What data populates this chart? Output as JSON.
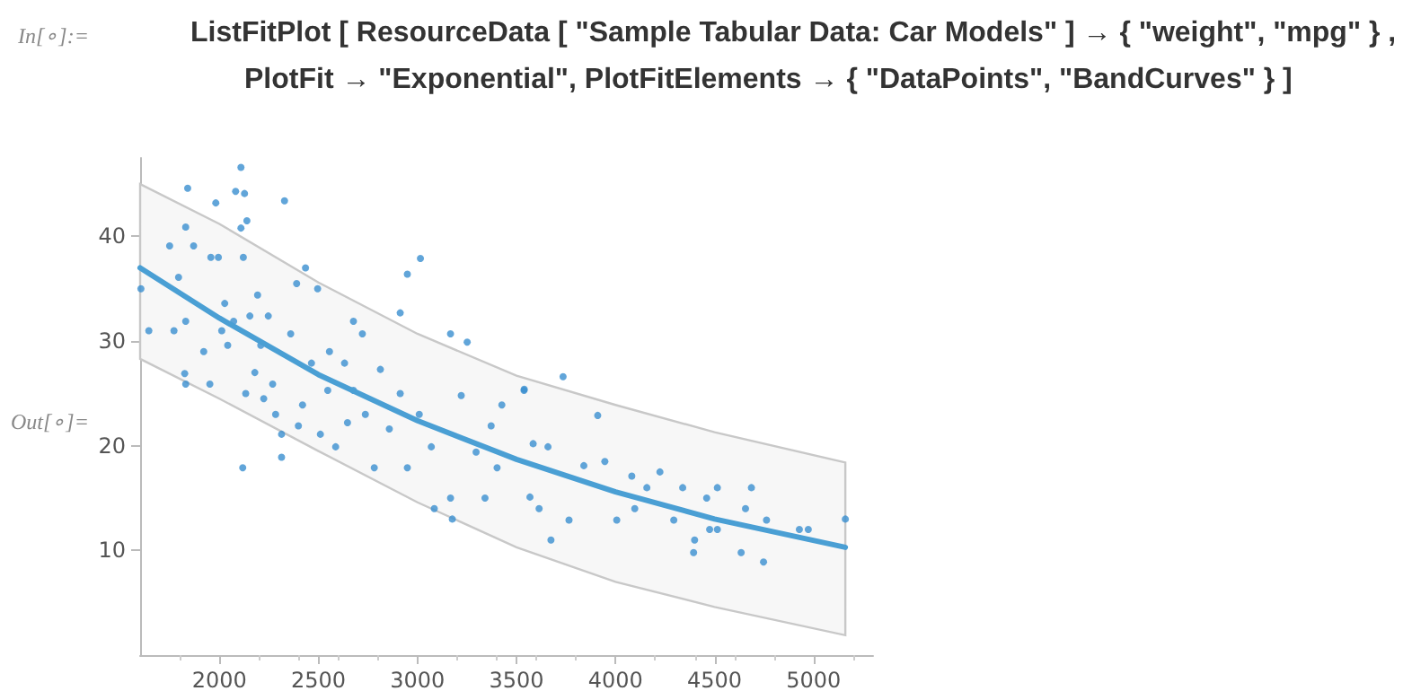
{
  "chart_data": {
    "type": "scatter",
    "title": "ListFitPlot [ ResourceData [ \"Sample Tabular Data: Car Models\" ] → { \"weight\", \"mpg\" } ,",
    "subtitle": "PlotFit → \"Exponential\", PlotFitElements → { \"DataPoints\", \"BandCurves\" } ]",
    "annotations": [
      "In[∘]:=",
      "Out[∘]="
    ],
    "xlim": [
      1600,
      5300
    ],
    "xticks": [
      2000,
      2500,
      3000,
      3500,
      4000,
      4500,
      5000
    ],
    "ylim": [
      0,
      47.5
    ],
    "yticks": [
      10,
      20,
      30,
      40
    ],
    "grid": false,
    "marker": "circle",
    "series": [
      {
        "type": "scatter",
        "color": "#3a8fd0",
        "x": [
          1604,
          1644,
          1749,
          1840,
          1830,
          1794,
          1830,
          1825,
          1830,
          1771,
          1921,
          1870,
          1982,
          1957,
          1995,
          1952,
          2012,
          2027,
          2072,
          2042,
          2082,
          2109,
          2127,
          2139,
          2109,
          2121,
          2118,
          2154,
          2133,
          2179,
          2209,
          2193,
          2247,
          2224,
          2269,
          2284,
          2314,
          2329,
          2314,
          2360,
          2390,
          2435,
          2420,
          2399,
          2465,
          2496,
          2510,
          2556,
          2547,
          2587,
          2632,
          2647,
          2677,
          2677,
          2722,
          2737,
          2782,
          2813,
          2858,
          2913,
          2913,
          2949,
          2949,
          3015,
          3009,
          3070,
          3085,
          3167,
          3167,
          3176,
          3221,
          3251,
          3296,
          3341,
          3372,
          3402,
          3426,
          3538,
          3568,
          3614,
          3674,
          3659,
          3735,
          3539,
          3584,
          3765,
          3840,
          3910,
          3946,
          4006,
          4082,
          4097,
          4158,
          4224,
          4294,
          4339,
          4394,
          4399,
          4460,
          4475,
          4514,
          4514,
          4634,
          4656,
          4686,
          4747,
          4762,
          4928,
          4973,
          5160
        ],
        "values": [
          35.0,
          31.0,
          39.1,
          44.6,
          40.9,
          36.1,
          31.9,
          26.9,
          25.9,
          31.0,
          29.0,
          39.1,
          43.2,
          38.0,
          38.0,
          25.9,
          31.0,
          33.6,
          31.9,
          29.6,
          44.3,
          46.6,
          44.1,
          41.5,
          40.8,
          38.0,
          17.9,
          32.4,
          25.0,
          27.0,
          29.6,
          34.4,
          32.4,
          24.5,
          25.9,
          23.0,
          21.1,
          43.4,
          18.9,
          30.7,
          35.5,
          37.0,
          23.9,
          21.9,
          27.9,
          35.0,
          21.1,
          29.0,
          25.3,
          19.9,
          27.9,
          22.2,
          31.9,
          25.3,
          30.7,
          23.0,
          17.9,
          27.3,
          21.6,
          32.7,
          25.0,
          36.4,
          17.9,
          37.9,
          23.0,
          19.9,
          14.0,
          30.7,
          15.0,
          13.0,
          24.8,
          29.9,
          19.4,
          15.0,
          21.9,
          17.9,
          23.9,
          25.3,
          15.1,
          14.0,
          11.0,
          19.9,
          26.6,
          25.4,
          20.2,
          12.9,
          18.1,
          22.9,
          18.5,
          12.9,
          17.1,
          14.0,
          16.0,
          17.5,
          12.9,
          16.0,
          9.8,
          11.0,
          15.0,
          12.0,
          16.0,
          12.0,
          9.8,
          14.0,
          16.0,
          8.9,
          12.9,
          12.0,
          12.0,
          13.0
        ]
      },
      {
        "type": "line",
        "color": "#4a9fd4",
        "marker": "none",
        "x": [
          1600,
          2000,
          2500,
          3000,
          3500,
          4000,
          4500,
          5160
        ],
        "values": [
          37.0,
          32.2,
          26.8,
          22.4,
          18.7,
          15.6,
          13.0,
          10.3
        ],
        "lower": [
          28.3,
          24.5,
          19.5,
          14.6,
          10.3,
          7.0,
          4.6,
          1.9
        ],
        "upper": [
          45.0,
          41.2,
          35.6,
          30.7,
          26.7,
          23.9,
          21.3,
          18.4
        ]
      }
    ]
  }
}
